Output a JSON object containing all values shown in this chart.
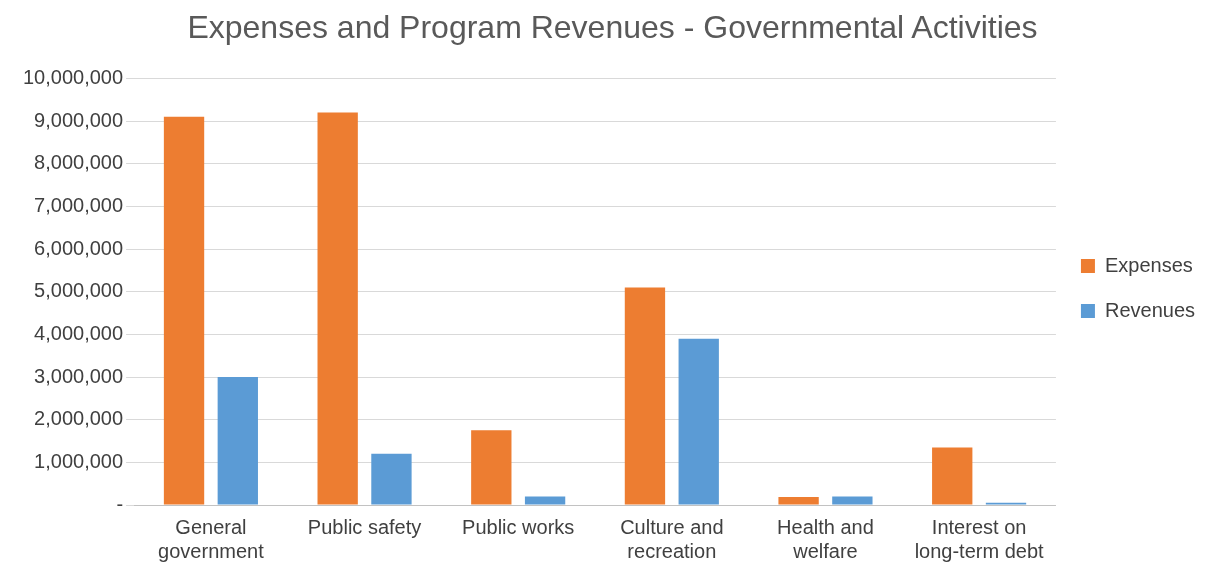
{
  "chart_data": {
    "type": "bar",
    "title": "Expenses and Program Revenues - Governmental Activities",
    "categories": [
      "General government",
      "Public safety",
      "Public works",
      "Culture and recreation",
      "Health and welfare",
      "Interest on long-term debt"
    ],
    "series": [
      {
        "name": "Expenses",
        "color": "#ed7d31",
        "values": [
          9100000,
          9200000,
          1750000,
          5100000,
          190000,
          1350000
        ]
      },
      {
        "name": "Revenues",
        "color": "#5b9bd5",
        "values": [
          3000000,
          1200000,
          200000,
          3900000,
          200000,
          50000
        ]
      }
    ],
    "ylim": [
      0,
      10000000
    ],
    "yticks": [
      {
        "value": 0,
        "label": "-"
      },
      {
        "value": 1000000,
        "label": "1,000,000"
      },
      {
        "value": 2000000,
        "label": "2,000,000"
      },
      {
        "value": 3000000,
        "label": "3,000,000"
      },
      {
        "value": 4000000,
        "label": "4,000,000"
      },
      {
        "value": 5000000,
        "label": "5,000,000"
      },
      {
        "value": 6000000,
        "label": "6,000,000"
      },
      {
        "value": 7000000,
        "label": "7,000,000"
      },
      {
        "value": 8000000,
        "label": "8,000,000"
      },
      {
        "value": 9000000,
        "label": "9,000,000"
      },
      {
        "value": 10000000,
        "label": "10,000,000"
      }
    ],
    "grid": "y",
    "legend": "right"
  }
}
